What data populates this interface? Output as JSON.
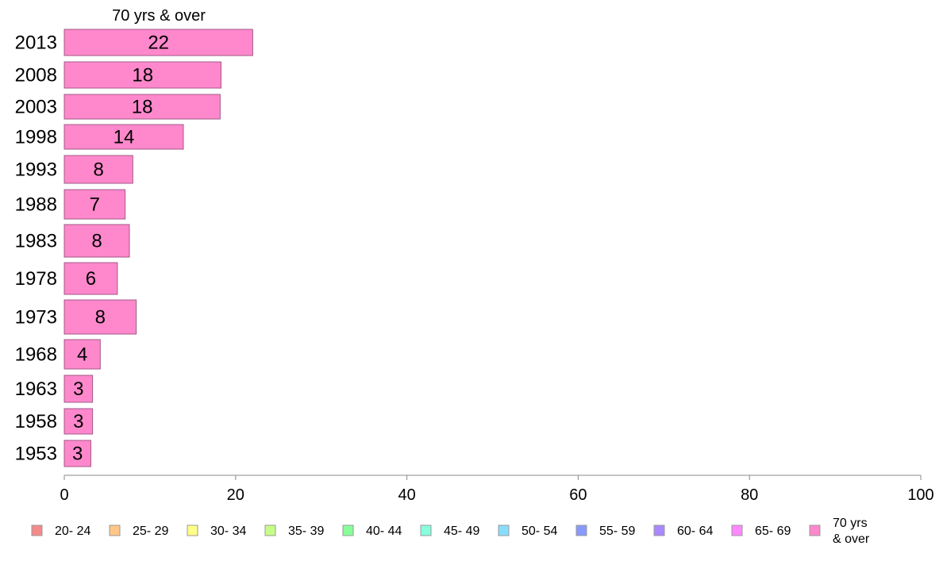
{
  "chart_data": {
    "type": "bar",
    "orientation": "horizontal",
    "series_title": "70 yrs & over",
    "categories": [
      "2013",
      "2008",
      "2003",
      "1998",
      "1993",
      "1988",
      "1983",
      "1978",
      "1973",
      "1968",
      "1963",
      "1958",
      "1953"
    ],
    "series": [
      {
        "name": "70 yrs & over",
        "color": "#ff88cc",
        "values": [
          22,
          18.3,
          18.2,
          13.9,
          8.0,
          7.1,
          7.6,
          6.2,
          8.4,
          4.2,
          3.3,
          3.3,
          3.1
        ],
        "labels": [
          "22",
          "18",
          "18",
          "14",
          "8",
          "7",
          "8",
          "6",
          "8",
          "4",
          "3",
          "3",
          "3"
        ]
      }
    ],
    "xlim": [
      0,
      100
    ],
    "xticks": [
      "0",
      "20",
      "40",
      "60",
      "80",
      "100"
    ],
    "grid": false,
    "legend": {
      "position": "bottom",
      "items": [
        {
          "label": "20- 24",
          "color": "#f48a8a"
        },
        {
          "label": "25- 29",
          "color": "#ffc688"
        },
        {
          "label": "30- 34",
          "color": "#ffff88"
        },
        {
          "label": "35- 39",
          "color": "#c6ff88"
        },
        {
          "label": "40- 44",
          "color": "#88ff99"
        },
        {
          "label": "45- 49",
          "color": "#88ffdd"
        },
        {
          "label": "50- 54",
          "color": "#88ddff"
        },
        {
          "label": "55- 59",
          "color": "#8899ff"
        },
        {
          "label": "60- 64",
          "color": "#aa88ff"
        },
        {
          "label": "65- 69",
          "color": "#ff88ff"
        },
        {
          "label": "70 yrs\n& over",
          "color": "#ff88cc"
        }
      ]
    }
  }
}
